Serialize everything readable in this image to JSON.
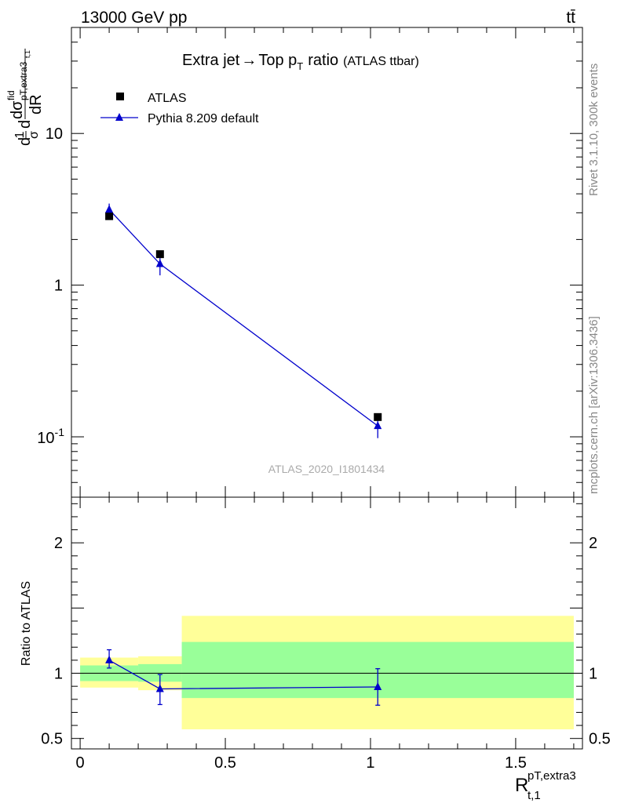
{
  "header": {
    "energy_label": "13000 GeV pp",
    "process_label": "tt̄"
  },
  "side_text": {
    "rivet": "Rivet 3.1.10,  300k events",
    "mcplots": "mcplots.cern.ch [arXiv:1306.3436]"
  },
  "chart_data": [
    {
      "type": "scatter",
      "panel": "main",
      "title": "Extra jet→ Top pT ratio",
      "title_parts": {
        "lead": "Extra jet",
        "arrow": "→",
        "main": "Top p",
        "sub": "T",
        "tail": "ratio",
        "note": "(ATLAS ttbar)"
      },
      "analysis_id": "ATLAS_2020_I1801434",
      "ylabel": "1/σ dσ^fid / dR^pT,extra3_t,1",
      "ylabel_parts": {
        "frac1_num": "1",
        "frac1_den": "σ",
        "d": "d",
        "sigma": "dσ",
        "fid": "fid",
        "sub": "pT,extra3",
        "sub2": "t,1",
        "den": "dR"
      },
      "yscale": "log",
      "ylim": [
        0.04,
        50
      ],
      "yticks": [
        "10^{-1}",
        "1",
        "10"
      ],
      "ytick_values": [
        0.1,
        1,
        10
      ],
      "legend_position": "top-left",
      "series": [
        {
          "name": "ATLAS",
          "marker": "square",
          "color": "#000000",
          "x": [
            0.1,
            0.275,
            1.025
          ],
          "y": [
            2.85,
            1.6,
            0.135
          ]
        },
        {
          "name": "Pythia 8.209 default",
          "marker": "triangle",
          "color": "#0000cc",
          "x": [
            0.1,
            0.275,
            1.025
          ],
          "y": [
            3.15,
            1.38,
            0.118
          ],
          "yerr_low": [
            0.35,
            0.22,
            0.02
          ],
          "yerr_high": [
            0.3,
            0.14,
            0.018
          ]
        }
      ]
    },
    {
      "type": "scatter",
      "panel": "ratio",
      "ylabel": "Ratio to ATLAS",
      "xlabel": "R^{pT,extra3}_{t,1}",
      "xlabel_parts": {
        "main": "R",
        "sup": "pT,extra3",
        "sub": "t,1"
      },
      "xlim": [
        -0.03,
        1.73
      ],
      "xticks": [
        "0",
        "0.5",
        "1",
        "1.5"
      ],
      "xtick_values": [
        0,
        0.5,
        1,
        1.5
      ],
      "ylim": [
        0.42,
        2.35
      ],
      "yticks": [
        "0.5",
        "1",
        "2"
      ],
      "ytick_values": [
        0.5,
        1,
        2
      ],
      "bands": [
        {
          "x_low": 0.0,
          "x_high": 0.2,
          "yellow": [
            0.89,
            1.12
          ],
          "green": [
            0.94,
            1.06
          ]
        },
        {
          "x_low": 0.2,
          "x_high": 0.35,
          "yellow": [
            0.87,
            1.13
          ],
          "green": [
            0.935,
            1.07
          ]
        },
        {
          "x_low": 0.35,
          "x_high": 1.7,
          "yellow": [
            0.57,
            1.44
          ],
          "green": [
            0.81,
            1.24
          ]
        }
      ],
      "series": [
        {
          "name": "Pythia 8.209 default",
          "color": "#0000cc",
          "x": [
            0.1,
            0.275,
            1.025
          ],
          "y": [
            1.1,
            0.88,
            0.895
          ],
          "yerr_low": [
            0.06,
            0.12,
            0.14
          ],
          "yerr_high": [
            0.08,
            0.11,
            0.14
          ]
        }
      ],
      "colors": {
        "yellow_band": "#ffff99",
        "green_band": "#99ff99"
      }
    }
  ]
}
